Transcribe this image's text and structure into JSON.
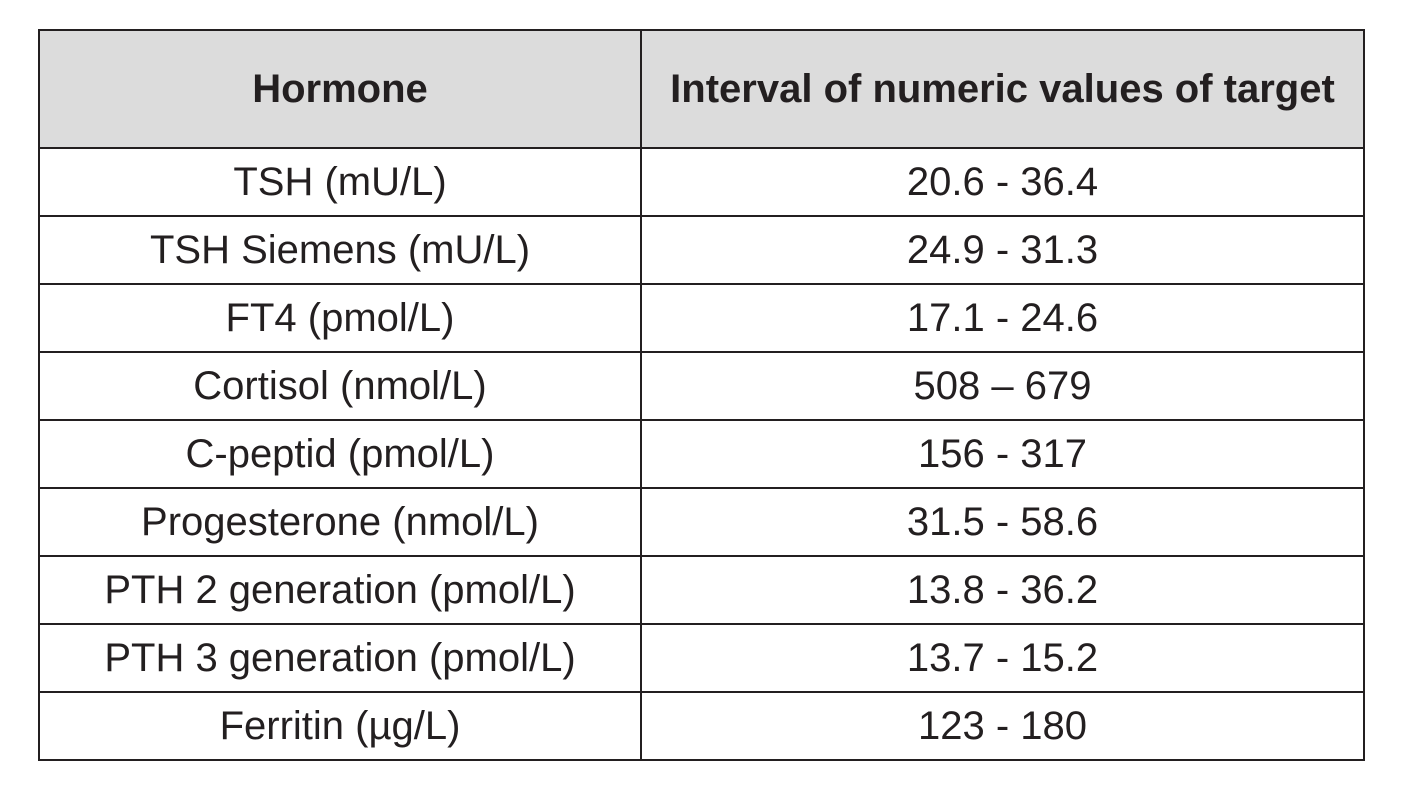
{
  "table": {
    "headers": [
      "Hormone",
      "Interval of numeric values of target"
    ],
    "rows": [
      {
        "hormone": "TSH (mU/L)",
        "interval": "20.6 - 36.4"
      },
      {
        "hormone": "TSH Siemens (mU/L)",
        "interval": "24.9 - 31.3"
      },
      {
        "hormone": "FT4 (pmol/L)",
        "interval": "17.1 - 24.6"
      },
      {
        "hormone": "Cortisol (nmol/L)",
        "interval": "508 – 679"
      },
      {
        "hormone": "C-peptid (pmol/L)",
        "interval": "156 - 317"
      },
      {
        "hormone": "Progesterone (nmol/L)",
        "interval": "31.5 - 58.6"
      },
      {
        "hormone": "PTH 2 generation (pmol/L)",
        "interval": "13.8 - 36.2"
      },
      {
        "hormone": "PTH 3 generation (pmol/L)",
        "interval": "13.7 - 15.2"
      },
      {
        "hormone": "Ferritin (µg/L)",
        "interval": "123 - 180"
      }
    ]
  }
}
